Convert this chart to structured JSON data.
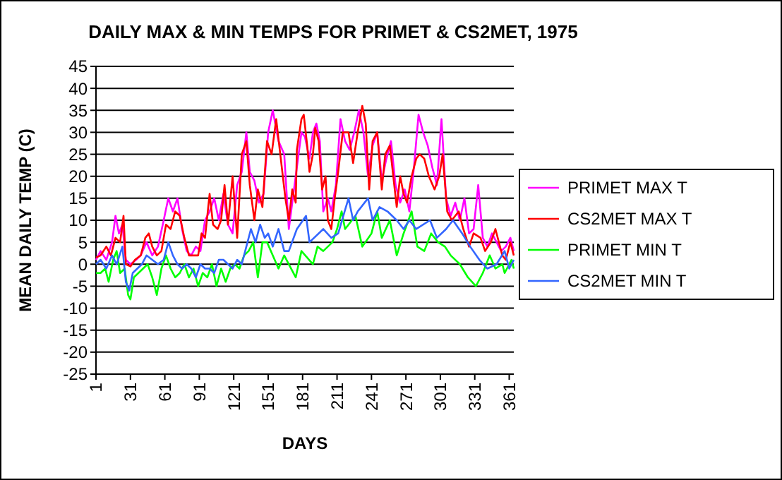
{
  "chart_data": {
    "type": "line",
    "title": "DAILY MAX & MIN TEMPS FOR PRIMET & CS2MET, 1975",
    "xlabel": "DAYS",
    "ylabel": "MEAN DAILY TEMP (C)",
    "xlim": [
      1,
      365
    ],
    "xticks": [
      1,
      31,
      61,
      91,
      121,
      151,
      181,
      211,
      241,
      271,
      301,
      331,
      361
    ],
    "ylim": [
      -25,
      45
    ],
    "yticks": [
      -25,
      -20,
      -15,
      -10,
      -5,
      0,
      5,
      10,
      15,
      20,
      25,
      30,
      35,
      40,
      45
    ],
    "grid": "y",
    "legend": "right",
    "marker": "none",
    "line_style": "solid",
    "series": [
      {
        "name": "PRIMET MAX T",
        "color": "#ff00ff",
        "x": [
          1,
          5,
          10,
          15,
          18,
          21,
          24,
          27,
          31,
          36,
          40,
          45,
          50,
          55,
          60,
          64,
          68,
          72,
          76,
          80,
          84,
          88,
          92,
          96,
          100,
          104,
          108,
          112,
          116,
          120,
          124,
          128,
          132,
          135,
          139,
          143,
          147,
          151,
          155,
          160,
          165,
          169,
          172,
          176,
          180,
          183,
          187,
          190,
          193,
          196,
          199,
          203,
          206,
          210,
          214,
          218,
          222,
          226,
          230,
          234,
          238,
          242,
          246,
          250,
          254,
          258,
          262,
          266,
          270,
          274,
          278,
          282,
          286,
          290,
          294,
          298,
          302,
          306,
          310,
          314,
          318,
          322,
          326,
          330,
          334,
          338,
          342,
          346,
          350,
          354,
          358,
          362,
          365
        ],
        "values": [
          1,
          3,
          1,
          5,
          11,
          7,
          9,
          1,
          0,
          1,
          2,
          5,
          2,
          4,
          10,
          15,
          12,
          15,
          8,
          3,
          2,
          4,
          3,
          10,
          12,
          15,
          10,
          16,
          9,
          7,
          18,
          21,
          30,
          21,
          19,
          14,
          16,
          30,
          35,
          28,
          25,
          8,
          14,
          22,
          30,
          29,
          24,
          30,
          32,
          28,
          12,
          15,
          12,
          18,
          33,
          28,
          26,
          30,
          35,
          30,
          20,
          27,
          30,
          19,
          24,
          28,
          18,
          14,
          17,
          12,
          22,
          34,
          30,
          27,
          22,
          18,
          33,
          15,
          11,
          14,
          10,
          15,
          7,
          8,
          18,
          6,
          4,
          7,
          5,
          3,
          4,
          6,
          3
        ]
      },
      {
        "name": "CS2MET MAX T",
        "color": "#ff0000",
        "x": [
          1,
          5,
          10,
          14,
          18,
          22,
          25,
          27,
          31,
          35,
          40,
          44,
          47,
          50,
          54,
          58,
          62,
          66,
          70,
          74,
          78,
          82,
          86,
          90,
          93,
          96,
          100,
          103,
          107,
          110,
          113,
          116,
          120,
          124,
          128,
          132,
          135,
          139,
          142,
          146,
          150,
          154,
          158,
          162,
          166,
          169,
          172,
          175,
          176,
          180,
          182,
          185,
          187,
          190,
          192,
          195,
          198,
          201,
          203,
          206,
          209,
          212,
          216,
          221,
          225,
          229,
          233,
          236,
          239,
          242,
          246,
          250,
          253,
          257,
          260,
          263,
          266,
          269,
          272,
          276,
          280,
          283,
          287,
          291,
          296,
          300,
          303,
          307,
          311,
          317,
          321,
          326,
          330,
          336,
          340,
          345,
          349,
          355,
          358,
          362,
          365
        ],
        "values": [
          1.5,
          2,
          4,
          2,
          6,
          5,
          11,
          0,
          -0.5,
          1,
          2,
          6,
          7,
          4,
          2,
          3,
          9,
          8,
          12,
          11,
          6,
          2,
          2,
          2,
          7,
          6,
          16,
          9,
          8,
          10,
          18,
          9,
          20,
          6,
          25,
          28,
          18,
          10,
          17,
          13,
          28,
          25,
          33,
          24,
          15,
          10,
          17,
          14,
          26,
          33,
          34,
          27,
          21,
          25,
          31,
          28,
          17,
          20,
          10,
          8,
          15,
          21,
          30,
          30,
          23,
          30,
          36,
          32,
          17,
          28,
          30,
          17,
          25,
          27,
          20,
          13,
          20,
          16,
          14,
          20,
          24,
          25,
          24,
          20,
          17,
          20,
          25,
          12,
          10,
          12,
          8,
          4,
          7,
          6,
          3,
          5,
          8,
          2,
          1,
          5,
          2
        ]
      },
      {
        "name": "PRIMET MIN T",
        "color": "#00ff00",
        "x": [
          1,
          5,
          9,
          12,
          16,
          19,
          22,
          26,
          29,
          31,
          34,
          38,
          42,
          46,
          50,
          54,
          58,
          62,
          66,
          70,
          74,
          78,
          82,
          86,
          90,
          94,
          98,
          102,
          106,
          110,
          114,
          118,
          122,
          126,
          130,
          134,
          138,
          142,
          146,
          150,
          155,
          160,
          165,
          169,
          175,
          180,
          190,
          194,
          199,
          207,
          211,
          215,
          218,
          224,
          227,
          233,
          241,
          246,
          250,
          257,
          263,
          269,
          276,
          281,
          287,
          293,
          299,
          305,
          310,
          318,
          325,
          332,
          338,
          344,
          349,
          355,
          357,
          363,
          365
        ],
        "values": [
          -2,
          -2,
          -1,
          -4,
          1,
          3,
          -2,
          -1,
          -7,
          -8,
          -3,
          -2,
          -1,
          0,
          -3,
          -7,
          -1,
          2,
          -1,
          -3,
          -2,
          0,
          -3,
          -1,
          -5,
          -2,
          -3,
          0,
          -5,
          -1,
          -4,
          -1,
          0,
          -1,
          2,
          3,
          5,
          -3,
          5,
          5,
          2,
          -1,
          2,
          0,
          -3,
          3,
          0,
          4,
          3,
          5,
          8,
          12,
          8,
          10,
          11,
          4,
          7,
          12,
          6,
          10,
          2,
          7,
          12,
          4,
          3,
          7,
          5,
          4,
          2,
          0,
          -3,
          -5,
          -2,
          2,
          -1,
          0,
          -2,
          1,
          -1
        ]
      },
      {
        "name": "CS2MET MIN T",
        "color": "#3366ff",
        "x": [
          1,
          5,
          10,
          15,
          19,
          24,
          27,
          30,
          33,
          37,
          41,
          45,
          50,
          55,
          60,
          64,
          68,
          72,
          76,
          80,
          84,
          88,
          92,
          96,
          100,
          104,
          108,
          112,
          116,
          120,
          124,
          128,
          132,
          136,
          140,
          144,
          148,
          151,
          155,
          160,
          165,
          169,
          176,
          184,
          187,
          199,
          206,
          212,
          221,
          225,
          229,
          238,
          242,
          248,
          255,
          263,
          269,
          274,
          280,
          292,
          298,
          306,
          312,
          320,
          327,
          335,
          342,
          350,
          357,
          361,
          365
        ],
        "values": [
          0,
          1,
          -1,
          2,
          0,
          4,
          -4,
          -6,
          -2,
          -1,
          0,
          2,
          1,
          0,
          1,
          5,
          2,
          0,
          -1,
          0,
          -1,
          -3,
          0,
          -1,
          -1,
          -2,
          1,
          1,
          0,
          -1,
          1,
          0,
          4,
          8,
          5,
          9,
          6,
          7,
          4,
          8,
          3,
          3,
          8,
          11,
          5,
          8,
          6,
          7,
          15,
          10,
          12,
          15,
          10,
          13,
          12,
          10,
          8,
          10,
          8,
          10,
          6,
          8,
          10,
          7,
          4,
          1,
          -1,
          0,
          3,
          -1,
          1
        ]
      }
    ]
  }
}
